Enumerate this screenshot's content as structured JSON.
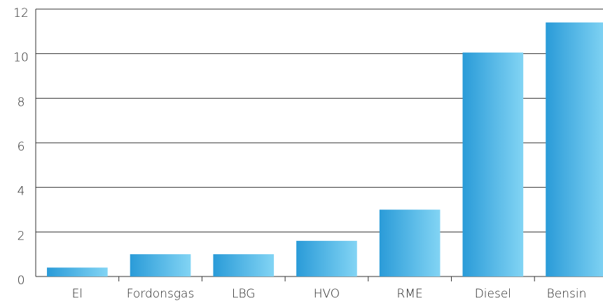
{
  "chart_data": {
    "type": "bar",
    "categories": [
      "El",
      "Fordonsgas",
      "LBG",
      "HVO",
      "RME",
      "Diesel",
      "Bensin"
    ],
    "values": [
      0.4,
      1.0,
      1.0,
      1.6,
      3.0,
      10.05,
      11.4
    ],
    "color": "#2a9bd8",
    "ylim": [
      0,
      12
    ],
    "yticks": [
      0,
      2,
      4,
      6,
      8,
      10,
      12
    ],
    "grid": true
  }
}
